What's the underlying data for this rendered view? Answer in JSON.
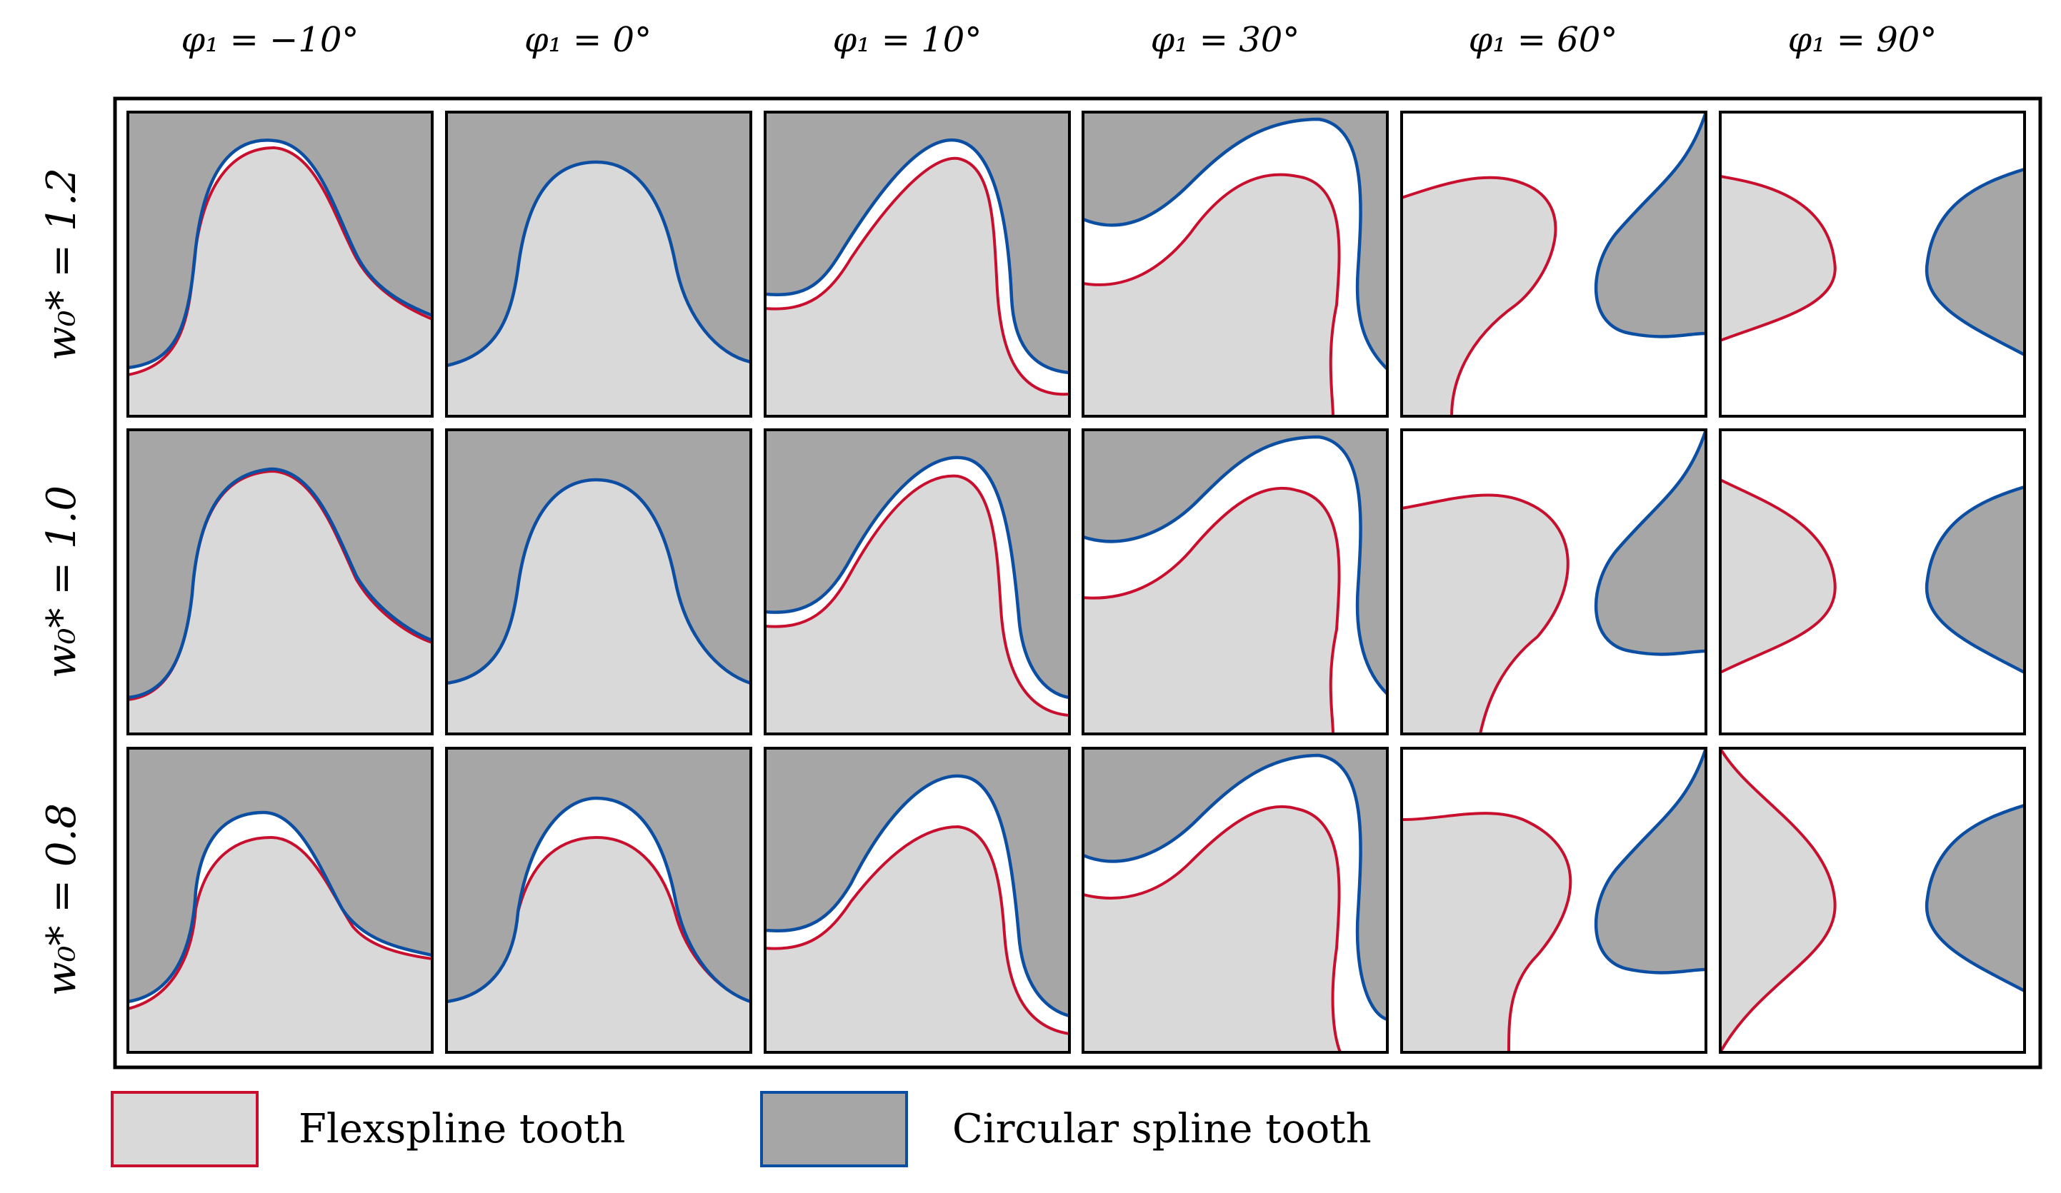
{
  "figure": {
    "column_headers": [
      "φ₁ = −10°",
      "φ₁ = 0°",
      "φ₁ = 10°",
      "φ₁ = 30°",
      "φ₁ = 60°",
      "φ₁ = 90°"
    ],
    "row_headers": [
      "w₀* = 1.2",
      "w₀* = 1.0",
      "w₀* = 0.8"
    ],
    "colors": {
      "flexspline_fill": "#d9d9d9",
      "flexspline_stroke": "#c8102e",
      "circular_fill": "#a6a6a6",
      "circular_stroke": "#0b4ea2",
      "gap": "#ffffff",
      "frame": "#000000"
    }
  },
  "legend": {
    "flexspline_label": "Flexspline tooth",
    "circular_label": "Circular spline tooth"
  }
}
